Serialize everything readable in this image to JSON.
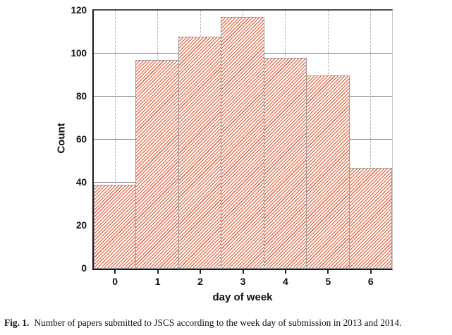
{
  "figure": {
    "caption_label": "Fig. 1.",
    "caption_text": "Number of papers submitted to JSCS according to the week day of submission in 2013 and 2014."
  },
  "chart_data": {
    "type": "bar",
    "title": "",
    "xlabel": "day of week",
    "ylabel": "Count",
    "categories": [
      "0",
      "1",
      "2",
      "3",
      "4",
      "5",
      "6"
    ],
    "values": [
      39,
      97,
      108,
      117,
      98,
      90,
      47
    ],
    "ylim": [
      0,
      120
    ],
    "yticks": [
      0,
      20,
      40,
      60,
      80,
      100,
      120
    ],
    "xticks": [
      "0",
      "1",
      "2",
      "3",
      "4",
      "5",
      "6"
    ],
    "legend": "none",
    "grid": {
      "horizontal": "solid",
      "vertical": "dotted",
      "behind_bars": true
    },
    "style": {
      "bar_fill": "#ffffff",
      "hatch": "diagonal-forward-slash",
      "hatch_color": "#dc5f3a",
      "bar_edge_color": "#9b9b9b",
      "grid_color": "#858585",
      "dotted_grid_color": "#a6a6a6"
    }
  }
}
